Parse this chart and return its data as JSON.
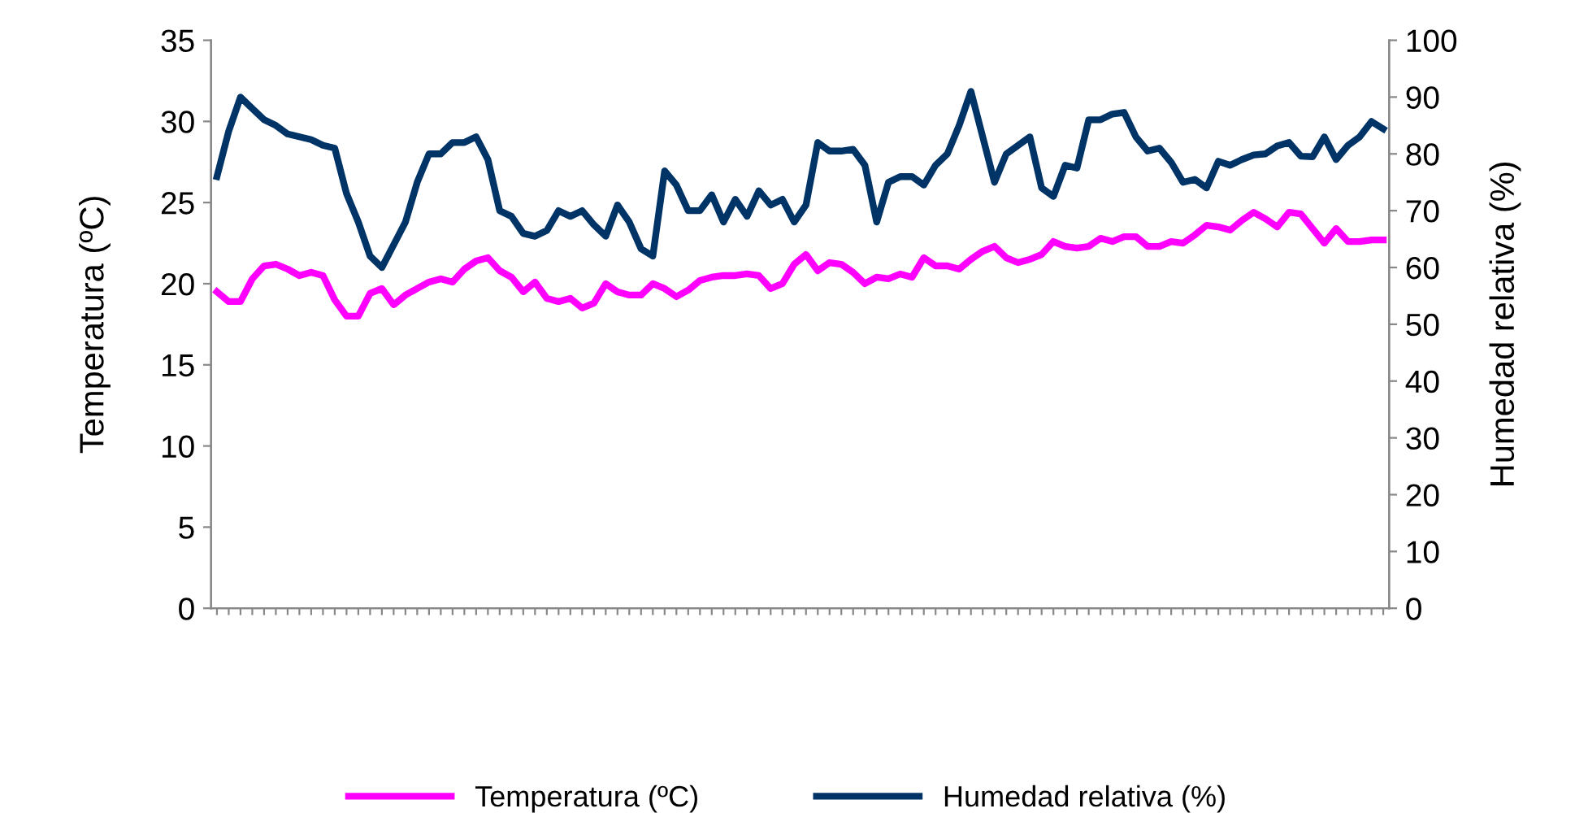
{
  "chart_data": {
    "type": "line",
    "categories": [
      null,
      null,
      null,
      null,
      null,
      null,
      null,
      null,
      null,
      null,
      null,
      null,
      null,
      null,
      null,
      null,
      null,
      null,
      null,
      null,
      null,
      null,
      null,
      null,
      null,
      null,
      null,
      null,
      null,
      null,
      null,
      null,
      null,
      null,
      null,
      null,
      null,
      null,
      null,
      null,
      null,
      null,
      null,
      null,
      null,
      null,
      null,
      null,
      null,
      null,
      null,
      null,
      null,
      null,
      null,
      null,
      null,
      null,
      null,
      null,
      null,
      null,
      null,
      null,
      null,
      null,
      null,
      null,
      null,
      null,
      null,
      null,
      null,
      null,
      null,
      null,
      null,
      null,
      null,
      null,
      null,
      null,
      null,
      null,
      null,
      null,
      null,
      null,
      null,
      null,
      null,
      null,
      null,
      null,
      null,
      null,
      null,
      null,
      null,
      null
    ],
    "ylabel": "Temperatura (ºC)",
    "y2label": "Humedad relativa (%)",
    "ylim": [
      0,
      35
    ],
    "yticks": [
      0,
      5,
      10,
      15,
      20,
      25,
      30,
      35
    ],
    "y2lim": [
      0,
      100
    ],
    "y2ticks": [
      0,
      10,
      20,
      30,
      40,
      50,
      60,
      70,
      80,
      90,
      100
    ],
    "legend": "bottom",
    "marker": "none",
    "line_style": "solid",
    "series": [
      {
        "name": "Temperatura (ºC)",
        "color": "#ff00ff",
        "values": [
          19.5,
          18.9,
          18.9,
          20.3,
          21.1,
          21.2,
          20.9,
          20.5,
          20.7,
          20.5,
          19.0,
          18.0,
          18.0,
          19.4,
          19.7,
          18.7,
          19.3,
          19.7,
          20.1,
          20.3,
          20.1,
          20.9,
          21.4,
          21.6,
          20.8,
          20.4,
          19.5,
          20.1,
          19.1,
          18.9,
          19.1,
          18.5,
          18.8,
          20.0,
          19.5,
          19.3,
          19.3,
          20.0,
          19.7,
          19.2,
          19.6,
          20.2,
          20.4,
          20.5,
          20.5,
          20.6,
          20.5,
          19.7,
          20.0,
          21.2,
          21.8,
          20.8,
          21.3,
          21.2,
          20.7,
          20.0,
          20.4,
          20.3,
          20.6,
          20.4,
          21.6,
          21.1,
          21.1,
          20.9,
          21.5,
          22.0,
          22.3,
          21.6,
          21.3,
          21.5,
          21.8,
          22.6,
          22.3,
          22.2,
          22.3,
          22.8,
          22.6,
          22.9,
          22.9,
          22.3,
          22.3,
          22.6,
          22.5,
          23.0,
          23.6,
          23.5,
          23.3,
          23.9,
          24.4,
          24.0,
          23.5,
          24.4,
          24.3,
          23.4,
          22.5,
          23.4,
          22.6,
          22.6,
          22.7,
          22.7
        ]
      },
      {
        "name": "Humedad relativa (%)",
        "color": "#003366",
        "axis": "y2",
        "values": [
          76,
          84,
          90,
          88,
          86,
          85,
          83.5,
          83,
          82.5,
          81.5,
          81,
          73,
          68,
          62,
          60,
          64,
          68,
          75,
          80,
          80,
          82,
          82,
          83,
          79,
          70,
          69,
          66,
          65.5,
          66.5,
          70,
          69,
          70,
          67.5,
          65.5,
          71,
          68,
          63.3,
          62,
          77,
          74.5,
          70,
          70,
          72.8,
          68,
          72,
          69,
          73.5,
          71,
          72,
          68,
          71,
          82,
          80.5,
          80.5,
          80.8,
          78,
          68,
          75,
          76,
          76,
          74.5,
          78,
          80,
          85,
          91,
          83,
          75,
          80,
          81.5,
          83,
          74,
          72.5,
          78,
          77.5,
          86,
          86,
          87,
          87.3,
          83,
          80.5,
          81,
          78.5,
          75,
          75.5,
          74,
          78.7,
          78,
          79,
          79.8,
          80,
          81.4,
          82,
          79.6,
          79.5,
          83,
          79,
          81.5,
          83,
          85.7,
          84.4
        ]
      }
    ]
  }
}
